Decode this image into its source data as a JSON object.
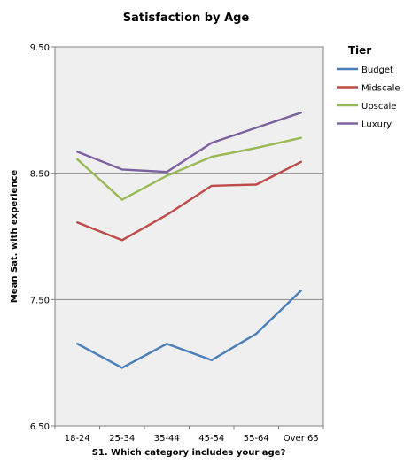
{
  "chart_data": {
    "type": "line",
    "title": "Satisfaction by Age",
    "xlabel": "S1. Which category includes your age?",
    "ylabel": "Mean Sat. with experience",
    "categories": [
      "18-24",
      "25-34",
      "35-44",
      "45-54",
      "55-64",
      "Over 65"
    ],
    "ylim": [
      6.5,
      9.5
    ],
    "yticks": [
      "6.50",
      "7.50",
      "8.50",
      "9.50"
    ],
    "grid": true,
    "legend": {
      "title": "Tier",
      "placement": "right"
    },
    "series": [
      {
        "name": "Budget",
        "color": "#4a7ebb",
        "values": [
          7.15,
          6.96,
          7.15,
          7.02,
          7.23,
          7.57
        ]
      },
      {
        "name": "Midscale",
        "color": "#be4b48",
        "values": [
          8.11,
          7.97,
          8.17,
          8.4,
          8.41,
          8.59
        ]
      },
      {
        "name": "Upscale",
        "color": "#98b954",
        "values": [
          8.61,
          8.29,
          8.48,
          8.63,
          8.7,
          8.78
        ]
      },
      {
        "name": "Luxury",
        "color": "#7d60a0",
        "values": [
          8.67,
          8.53,
          8.51,
          8.74,
          8.86,
          8.98
        ]
      }
    ]
  }
}
